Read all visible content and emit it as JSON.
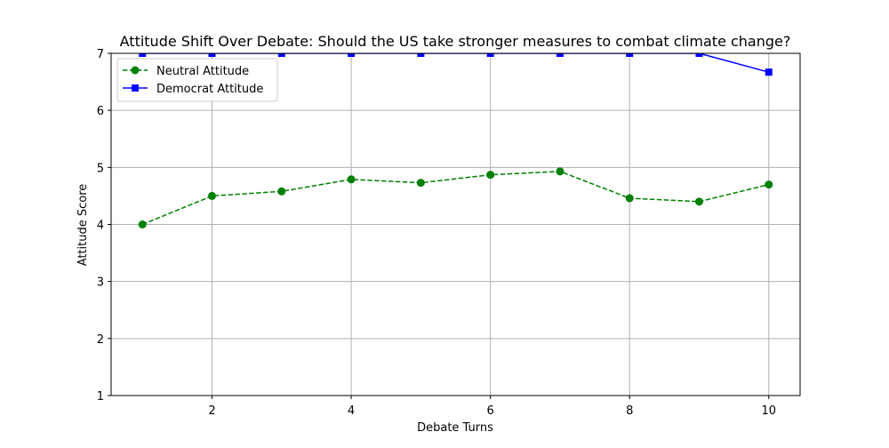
{
  "chart_data": {
    "type": "line",
    "title": "Attitude Shift Over Debate: Should the US take stronger measures to combat climate change?",
    "xlabel": "Debate Turns",
    "ylabel": "Attitude Score",
    "xlim": [
      0.55,
      10.45
    ],
    "ylim": [
      1,
      7
    ],
    "xticks": [
      2,
      4,
      6,
      8,
      10
    ],
    "yticks": [
      1,
      2,
      3,
      4,
      5,
      6,
      7
    ],
    "grid": true,
    "legend_position": "top-left",
    "x": [
      1,
      2,
      3,
      4,
      5,
      6,
      7,
      8,
      9,
      10
    ],
    "series": [
      {
        "name": "Neutral Attitude",
        "values": [
          4.0,
          4.5,
          4.58,
          4.79,
          4.73,
          4.87,
          4.93,
          4.46,
          4.4,
          4.7
        ],
        "color": "#008000",
        "line_style": "dashed",
        "marker": "circle"
      },
      {
        "name": "Democrat Attitude",
        "values": [
          7.0,
          7.0,
          7.0,
          7.0,
          7.0,
          7.0,
          7.0,
          7.0,
          7.0,
          6.67
        ],
        "color": "#0000ff",
        "line_style": "solid",
        "marker": "square"
      }
    ]
  }
}
